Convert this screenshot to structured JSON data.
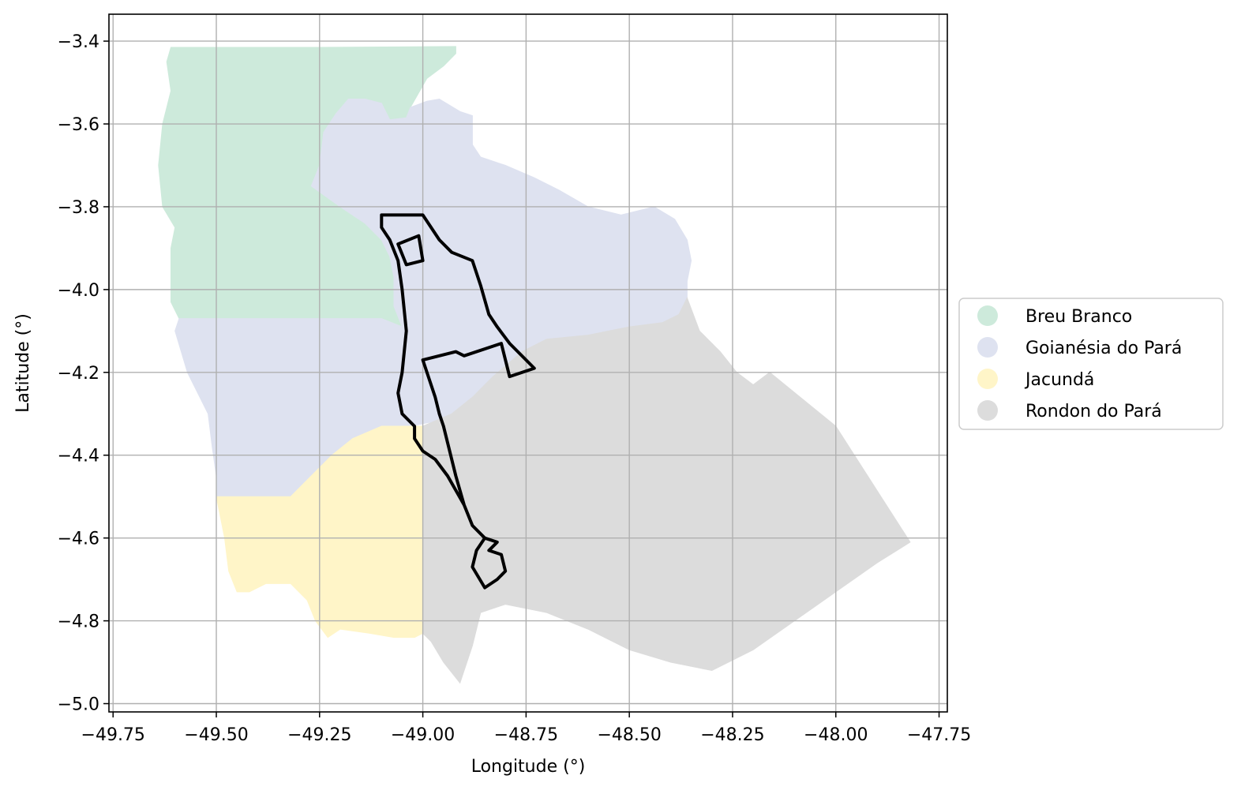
{
  "chart_data": {
    "type": "map",
    "xlabel": "Longitude (°)",
    "ylabel": "Latitude (°)",
    "xlim": [
      -49.76,
      -47.73
    ],
    "ylim": [
      -5.02,
      -3.335
    ],
    "xticks": [
      -49.75,
      -49.5,
      -49.25,
      -49.0,
      -48.75,
      -48.5,
      -48.25,
      -48.0,
      -47.75
    ],
    "xtick_labels": [
      "−49.75",
      "−49.50",
      "−49.25",
      "−49.00",
      "−48.75",
      "−48.50",
      "−48.25",
      "−48.00",
      "−47.75"
    ],
    "yticks": [
      -3.4,
      -3.6,
      -3.8,
      -4.0,
      -4.2,
      -4.4,
      -4.6,
      -4.8,
      -5.0
    ],
    "ytick_labels": [
      "−3.4",
      "−3.6",
      "−3.8",
      "−4.0",
      "−4.2",
      "−4.4",
      "−4.6",
      "−4.8",
      "−5.0"
    ],
    "grid": true,
    "legend_position": "right",
    "legend": [
      {
        "name": "Breu Branco",
        "color": "#cdeadb"
      },
      {
        "name": "Goianésia do Pará",
        "color": "#dee2f0"
      },
      {
        "name": "Jacundá",
        "color": "#fff5c8"
      },
      {
        "name": "Rondon do Pará",
        "color": "#dcdcdc"
      }
    ],
    "regions": [
      {
        "name": "Breu Branco",
        "color": "#cdeadb",
        "coords": [
          [
            -49.61,
            -3.415
          ],
          [
            -49.25,
            -3.415
          ],
          [
            -48.92,
            -3.413
          ],
          [
            -48.92,
            -3.43
          ],
          [
            -48.95,
            -3.46
          ],
          [
            -48.99,
            -3.49
          ],
          [
            -49.03,
            -3.56
          ],
          [
            -49.04,
            -3.585
          ],
          [
            -49.08,
            -3.59
          ],
          [
            -49.1,
            -3.55
          ],
          [
            -49.14,
            -3.54
          ],
          [
            -49.18,
            -3.54
          ],
          [
            -49.21,
            -3.575
          ],
          [
            -49.24,
            -3.62
          ],
          [
            -49.25,
            -3.7
          ],
          [
            -49.27,
            -3.75
          ],
          [
            -49.2,
            -3.8
          ],
          [
            -49.14,
            -3.84
          ],
          [
            -49.1,
            -3.88
          ],
          [
            -49.08,
            -3.92
          ],
          [
            -49.07,
            -3.97
          ],
          [
            -49.07,
            -4.04
          ],
          [
            -49.05,
            -4.09
          ],
          [
            -49.1,
            -4.07
          ],
          [
            -49.24,
            -4.07
          ],
          [
            -49.43,
            -4.07
          ],
          [
            -49.59,
            -4.07
          ],
          [
            -49.61,
            -4.03
          ],
          [
            -49.61,
            -3.9
          ],
          [
            -49.6,
            -3.85
          ],
          [
            -49.63,
            -3.8
          ],
          [
            -49.64,
            -3.7
          ],
          [
            -49.63,
            -3.6
          ],
          [
            -49.61,
            -3.52
          ],
          [
            -49.62,
            -3.45
          ]
        ]
      },
      {
        "name": "Goianésia do Pará",
        "color": "#dee2f0",
        "coords": [
          [
            -49.25,
            -3.7
          ],
          [
            -49.24,
            -3.62
          ],
          [
            -49.21,
            -3.575
          ],
          [
            -49.18,
            -3.54
          ],
          [
            -49.14,
            -3.54
          ],
          [
            -49.1,
            -3.55
          ],
          [
            -49.08,
            -3.59
          ],
          [
            -49.04,
            -3.585
          ],
          [
            -49.03,
            -3.56
          ],
          [
            -48.99,
            -3.545
          ],
          [
            -48.96,
            -3.54
          ],
          [
            -48.91,
            -3.57
          ],
          [
            -48.88,
            -3.58
          ],
          [
            -48.88,
            -3.65
          ],
          [
            -48.86,
            -3.68
          ],
          [
            -48.8,
            -3.7
          ],
          [
            -48.73,
            -3.73
          ],
          [
            -48.67,
            -3.76
          ],
          [
            -48.6,
            -3.8
          ],
          [
            -48.52,
            -3.82
          ],
          [
            -48.44,
            -3.8
          ],
          [
            -48.39,
            -3.83
          ],
          [
            -48.36,
            -3.88
          ],
          [
            -48.35,
            -3.93
          ],
          [
            -48.36,
            -3.98
          ],
          [
            -48.36,
            -4.02
          ],
          [
            -48.38,
            -4.06
          ],
          [
            -48.42,
            -4.08
          ],
          [
            -48.5,
            -4.09
          ],
          [
            -48.6,
            -4.11
          ],
          [
            -48.7,
            -4.12
          ],
          [
            -48.76,
            -4.15
          ],
          [
            -48.83,
            -4.21
          ],
          [
            -48.88,
            -4.26
          ],
          [
            -48.93,
            -4.3
          ],
          [
            -48.98,
            -4.32
          ],
          [
            -49.03,
            -4.33
          ],
          [
            -49.1,
            -4.33
          ],
          [
            -49.17,
            -4.36
          ],
          [
            -49.22,
            -4.4
          ],
          [
            -49.27,
            -4.45
          ],
          [
            -49.32,
            -4.5
          ],
          [
            -49.5,
            -4.5
          ],
          [
            -49.5,
            -4.45
          ],
          [
            -49.51,
            -4.38
          ],
          [
            -49.52,
            -4.3
          ],
          [
            -49.57,
            -4.2
          ],
          [
            -49.6,
            -4.1
          ],
          [
            -49.59,
            -4.07
          ],
          [
            -49.43,
            -4.07
          ],
          [
            -49.24,
            -4.07
          ],
          [
            -49.1,
            -4.07
          ],
          [
            -49.05,
            -4.09
          ],
          [
            -49.07,
            -4.04
          ],
          [
            -49.07,
            -3.97
          ],
          [
            -49.08,
            -3.92
          ],
          [
            -49.1,
            -3.88
          ],
          [
            -49.14,
            -3.84
          ],
          [
            -49.2,
            -3.8
          ],
          [
            -49.27,
            -3.75
          ]
        ]
      },
      {
        "name": "Jacundá",
        "color": "#fff5c8",
        "coords": [
          [
            -49.5,
            -4.5
          ],
          [
            -49.32,
            -4.5
          ],
          [
            -49.27,
            -4.45
          ],
          [
            -49.22,
            -4.4
          ],
          [
            -49.17,
            -4.36
          ],
          [
            -49.1,
            -4.33
          ],
          [
            -49.03,
            -4.33
          ],
          [
            -49.0,
            -4.33
          ],
          [
            -49.0,
            -4.6
          ],
          [
            -49.0,
            -4.83
          ],
          [
            -49.02,
            -4.84
          ],
          [
            -49.07,
            -4.84
          ],
          [
            -49.13,
            -4.83
          ],
          [
            -49.2,
            -4.82
          ],
          [
            -49.23,
            -4.84
          ],
          [
            -49.26,
            -4.8
          ],
          [
            -49.28,
            -4.75
          ],
          [
            -49.32,
            -4.71
          ],
          [
            -49.38,
            -4.71
          ],
          [
            -49.42,
            -4.73
          ],
          [
            -49.45,
            -4.73
          ],
          [
            -49.47,
            -4.68
          ],
          [
            -49.48,
            -4.6
          ],
          [
            -49.49,
            -4.55
          ]
        ]
      },
      {
        "name": "Rondon do Pará",
        "color": "#dcdcdc",
        "coords": [
          [
            -49.0,
            -4.33
          ],
          [
            -48.93,
            -4.3
          ],
          [
            -48.88,
            -4.26
          ],
          [
            -48.83,
            -4.21
          ],
          [
            -48.76,
            -4.15
          ],
          [
            -48.7,
            -4.12
          ],
          [
            -48.6,
            -4.11
          ],
          [
            -48.5,
            -4.09
          ],
          [
            -48.42,
            -4.08
          ],
          [
            -48.38,
            -4.06
          ],
          [
            -48.36,
            -4.02
          ],
          [
            -48.33,
            -4.1
          ],
          [
            -48.28,
            -4.15
          ],
          [
            -48.24,
            -4.2
          ],
          [
            -48.2,
            -4.23
          ],
          [
            -48.16,
            -4.2
          ],
          [
            -48.0,
            -4.33
          ],
          [
            -47.82,
            -4.61
          ],
          [
            -47.9,
            -4.66
          ],
          [
            -48.0,
            -4.73
          ],
          [
            -48.1,
            -4.8
          ],
          [
            -48.2,
            -4.87
          ],
          [
            -48.3,
            -4.92
          ],
          [
            -48.4,
            -4.9
          ],
          [
            -48.5,
            -4.87
          ],
          [
            -48.6,
            -4.82
          ],
          [
            -48.7,
            -4.78
          ],
          [
            -48.8,
            -4.76
          ],
          [
            -48.86,
            -4.78
          ],
          [
            -48.88,
            -4.86
          ],
          [
            -48.91,
            -4.95
          ],
          [
            -48.95,
            -4.9
          ],
          [
            -48.98,
            -4.85
          ],
          [
            -49.0,
            -4.83
          ],
          [
            -49.0,
            -4.6
          ]
        ]
      }
    ],
    "outline": {
      "name": "",
      "color": "#000000",
      "coords": [
        [
          -49.1,
          -3.82
        ],
        [
          -49.0,
          -3.82
        ],
        [
          -48.96,
          -3.88
        ],
        [
          -48.93,
          -3.91
        ],
        [
          -48.88,
          -3.93
        ],
        [
          -48.86,
          -3.99
        ],
        [
          -48.84,
          -4.06
        ],
        [
          -48.82,
          -4.09
        ],
        [
          -48.79,
          -4.13
        ],
        [
          -48.75,
          -4.17
        ],
        [
          -48.73,
          -4.19
        ],
        [
          -48.79,
          -4.21
        ],
        [
          -48.81,
          -4.13
        ],
        [
          -48.9,
          -4.16
        ],
        [
          -48.92,
          -4.15
        ],
        [
          -49.0,
          -4.17
        ],
        [
          -48.97,
          -4.26
        ],
        [
          -48.96,
          -4.3
        ],
        [
          -48.95,
          -4.33
        ],
        [
          -48.94,
          -4.37
        ],
        [
          -48.92,
          -4.45
        ],
        [
          -48.9,
          -4.52
        ],
        [
          -48.88,
          -4.57
        ],
        [
          -48.85,
          -4.6
        ],
        [
          -48.82,
          -4.61
        ],
        [
          -48.84,
          -4.63
        ],
        [
          -48.81,
          -4.64
        ],
        [
          -48.8,
          -4.68
        ],
        [
          -48.82,
          -4.7
        ],
        [
          -48.85,
          -4.72
        ],
        [
          -48.88,
          -4.67
        ],
        [
          -48.87,
          -4.63
        ],
        [
          -48.85,
          -4.6
        ],
        [
          -48.88,
          -4.57
        ],
        [
          -48.9,
          -4.52
        ],
        [
          -48.94,
          -4.45
        ],
        [
          -48.97,
          -4.41
        ],
        [
          -49.0,
          -4.39
        ],
        [
          -49.02,
          -4.36
        ],
        [
          -49.02,
          -4.33
        ],
        [
          -49.05,
          -4.3
        ],
        [
          -49.06,
          -4.25
        ],
        [
          -49.05,
          -4.2
        ],
        [
          -49.04,
          -4.1
        ],
        [
          -49.05,
          -4.0
        ],
        [
          -49.06,
          -3.93
        ],
        [
          -49.08,
          -3.88
        ],
        [
          -49.1,
          -3.85
        ]
      ]
    },
    "outline_inner": {
      "name": "",
      "color": "#000000",
      "coords": [
        [
          -49.06,
          -3.89
        ],
        [
          -49.01,
          -3.87
        ],
        [
          -49.0,
          -3.93
        ],
        [
          -49.04,
          -3.94
        ]
      ]
    }
  }
}
